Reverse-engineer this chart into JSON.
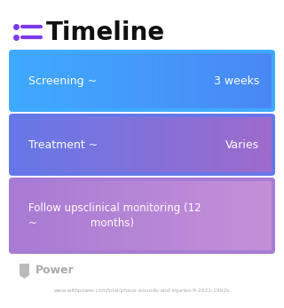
{
  "title": "Timeline",
  "title_fontsize": 20,
  "title_color": "#111111",
  "title_icon_color": "#7c3aed",
  "background_color": "#ffffff",
  "rows": [
    {
      "label_left": "Screening ~",
      "label_right": "3 weeks",
      "color_left": "#3fa8ff",
      "color_right": "#4488f5"
    },
    {
      "label_left": "Treatment ~",
      "label_right": "Varies",
      "color_left": "#6680e8",
      "color_right": "#a06bcc"
    },
    {
      "label_left": "Follow upsclinical monitoring (12\n~                months)",
      "label_right": "",
      "color_left": "#a87bd4",
      "color_right": "#c490d8"
    }
  ],
  "footer_text": "Power",
  "footer_url": "www.withpower.com/trial/phase-wounds-and-injuries-9-2022-1992b",
  "footer_color": "#aaaaaa"
}
